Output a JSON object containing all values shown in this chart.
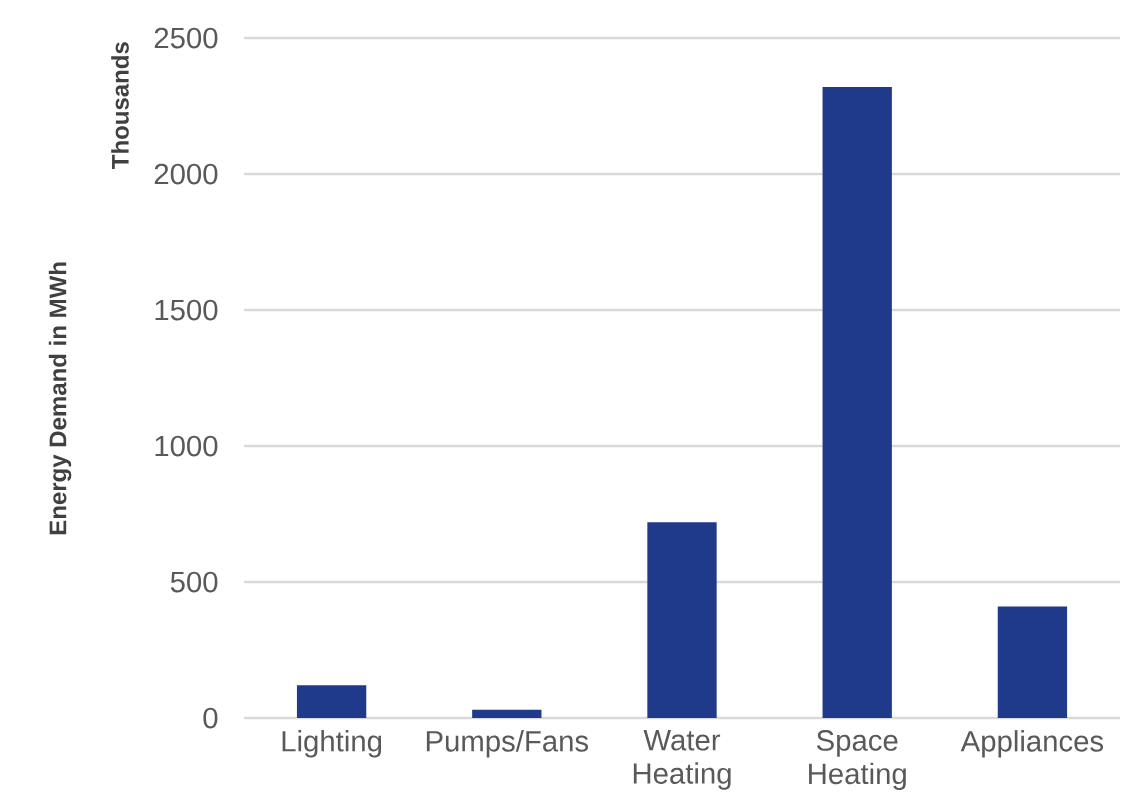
{
  "chart_data": {
    "type": "bar",
    "ylabel": "Energy Demand in MWh",
    "annotations": [
      "Thousands"
    ],
    "categories": [
      "Lighting",
      "Pumps/Fans",
      "Water Heating",
      "Space Heating",
      "Appliances"
    ],
    "values": [
      120,
      30,
      720,
      2320,
      410
    ],
    "color": "#1f3a8a",
    "ylim": [
      0,
      2500
    ],
    "yticks": [
      0,
      500,
      1000,
      1500,
      2000,
      2500
    ],
    "grid": "y"
  }
}
